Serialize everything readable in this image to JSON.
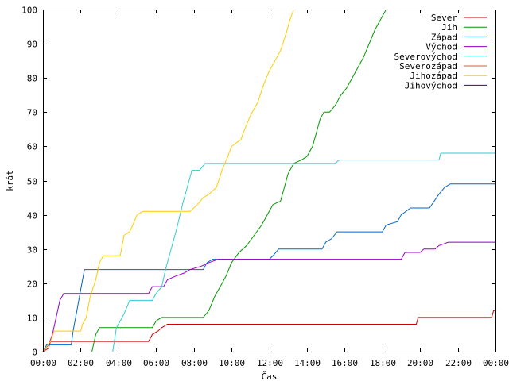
{
  "chart_data": {
    "type": "line",
    "title": "",
    "xlabel": "Čas",
    "ylabel": "krát",
    "xlim": [
      0,
      24
    ],
    "ylim": [
      0,
      100
    ],
    "grid": false,
    "legend_position": "top-right",
    "x_ticks": [
      {
        "x": 0,
        "label": "00:00"
      },
      {
        "x": 2,
        "label": "02:00"
      },
      {
        "x": 4,
        "label": "04:00"
      },
      {
        "x": 6,
        "label": "06:00"
      },
      {
        "x": 8,
        "label": "08:00"
      },
      {
        "x": 10,
        "label": "10:00"
      },
      {
        "x": 12,
        "label": "12:00"
      },
      {
        "x": 14,
        "label": "14:00"
      },
      {
        "x": 16,
        "label": "16:00"
      },
      {
        "x": 18,
        "label": "18:00"
      },
      {
        "x": 20,
        "label": "20:00"
      },
      {
        "x": 22,
        "label": "22:00"
      },
      {
        "x": 24,
        "label": "00:00"
      }
    ],
    "y_ticks": [
      0,
      10,
      20,
      30,
      40,
      50,
      60,
      70,
      80,
      90,
      100
    ],
    "series": [
      {
        "name": "Sever",
        "color": "#cc0000",
        "points": [
          [
            0,
            0
          ],
          [
            0.3,
            1
          ],
          [
            0.4,
            3
          ],
          [
            1.0,
            3
          ],
          [
            5.6,
            3
          ],
          [
            5.8,
            5
          ],
          [
            6.1,
            6
          ],
          [
            6.3,
            7
          ],
          [
            6.6,
            8
          ],
          [
            8.0,
            8
          ],
          [
            19.8,
            8
          ],
          [
            19.9,
            10
          ],
          [
            23.8,
            10
          ],
          [
            23.9,
            12
          ],
          [
            24,
            12
          ]
        ]
      },
      {
        "name": "Jih",
        "color": "#009900",
        "points": [
          [
            2.6,
            0
          ],
          [
            2.8,
            5
          ],
          [
            3.0,
            7
          ],
          [
            5.8,
            7
          ],
          [
            6.0,
            9
          ],
          [
            6.3,
            10
          ],
          [
            8.5,
            10
          ],
          [
            8.8,
            12
          ],
          [
            9.1,
            16
          ],
          [
            9.4,
            19
          ],
          [
            9.7,
            22
          ],
          [
            10.0,
            26
          ],
          [
            10.4,
            29
          ],
          [
            10.8,
            31
          ],
          [
            11.2,
            34
          ],
          [
            11.6,
            37
          ],
          [
            11.9,
            40
          ],
          [
            12.2,
            43
          ],
          [
            12.6,
            44
          ],
          [
            12.8,
            48
          ],
          [
            13.0,
            52
          ],
          [
            13.3,
            55
          ],
          [
            13.7,
            56
          ],
          [
            14.0,
            57
          ],
          [
            14.3,
            60
          ],
          [
            14.5,
            64
          ],
          [
            14.7,
            68
          ],
          [
            14.9,
            70
          ],
          [
            15.2,
            70
          ],
          [
            15.5,
            72
          ],
          [
            15.8,
            75
          ],
          [
            16.1,
            77
          ],
          [
            16.4,
            80
          ],
          [
            16.7,
            83
          ],
          [
            17.0,
            86
          ],
          [
            17.3,
            90
          ],
          [
            17.6,
            94
          ],
          [
            17.9,
            97
          ],
          [
            18.2,
            100
          ]
        ]
      },
      {
        "name": "Západ",
        "color": "#0066cc",
        "points": [
          [
            0,
            0
          ],
          [
            0.2,
            2
          ],
          [
            1.5,
            2
          ],
          [
            1.6,
            6
          ],
          [
            1.8,
            12
          ],
          [
            2.0,
            18
          ],
          [
            2.2,
            24
          ],
          [
            8.5,
            24
          ],
          [
            8.7,
            26
          ],
          [
            9.0,
            27
          ],
          [
            12.0,
            27
          ],
          [
            12.2,
            28
          ],
          [
            12.5,
            30
          ],
          [
            14.8,
            30
          ],
          [
            15.0,
            32
          ],
          [
            15.3,
            33
          ],
          [
            15.6,
            35
          ],
          [
            18.0,
            35
          ],
          [
            18.2,
            37
          ],
          [
            18.8,
            38
          ],
          [
            19.0,
            40
          ],
          [
            19.5,
            42
          ],
          [
            20.5,
            42
          ],
          [
            21.0,
            46
          ],
          [
            21.3,
            48
          ],
          [
            21.6,
            49
          ],
          [
            24,
            49
          ]
        ]
      },
      {
        "name": "Východ",
        "color": "#9900cc",
        "points": [
          [
            0,
            0
          ],
          [
            0.3,
            2
          ],
          [
            0.5,
            5
          ],
          [
            0.7,
            10
          ],
          [
            0.9,
            15
          ],
          [
            1.1,
            17
          ],
          [
            5.6,
            17
          ],
          [
            5.8,
            19
          ],
          [
            6.4,
            19
          ],
          [
            6.6,
            21
          ],
          [
            7.0,
            22
          ],
          [
            7.5,
            23
          ],
          [
            7.8,
            24
          ],
          [
            8.4,
            25
          ],
          [
            8.8,
            26
          ],
          [
            9.3,
            27
          ],
          [
            19.0,
            27
          ],
          [
            19.2,
            29
          ],
          [
            20.0,
            29
          ],
          [
            20.2,
            30
          ],
          [
            20.8,
            30
          ],
          [
            21.0,
            31
          ],
          [
            21.5,
            32
          ],
          [
            24,
            32
          ]
        ]
      },
      {
        "name": "Severovýchod",
        "color": "#33cccc",
        "points": [
          [
            3.7,
            0
          ],
          [
            3.9,
            7
          ],
          [
            4.3,
            11
          ],
          [
            4.6,
            15
          ],
          [
            5.8,
            15
          ],
          [
            6.0,
            17
          ],
          [
            6.3,
            19
          ],
          [
            6.5,
            24
          ],
          [
            6.8,
            30
          ],
          [
            7.1,
            36
          ],
          [
            7.4,
            43
          ],
          [
            7.7,
            49
          ],
          [
            7.9,
            53
          ],
          [
            8.3,
            53
          ],
          [
            8.6,
            55
          ],
          [
            15.5,
            55
          ],
          [
            15.7,
            56
          ],
          [
            21.0,
            56
          ],
          [
            21.1,
            58
          ],
          [
            24,
            58
          ]
        ]
      },
      {
        "name": "Severozápad",
        "color": "#cc6633",
        "points": []
      },
      {
        "name": "Jihozápad",
        "color": "#ffcc00",
        "points": [
          [
            0,
            0
          ],
          [
            0.4,
            3
          ],
          [
            0.6,
            6
          ],
          [
            2.0,
            6
          ],
          [
            2.1,
            8
          ],
          [
            2.3,
            10
          ],
          [
            2.5,
            16
          ],
          [
            2.8,
            21
          ],
          [
            3.0,
            26
          ],
          [
            3.2,
            28
          ],
          [
            4.1,
            28
          ],
          [
            4.3,
            34
          ],
          [
            4.6,
            35
          ],
          [
            5.0,
            40
          ],
          [
            5.3,
            41
          ],
          [
            7.5,
            41
          ],
          [
            7.8,
            41
          ],
          [
            8.2,
            43
          ],
          [
            8.5,
            45
          ],
          [
            8.8,
            46
          ],
          [
            9.2,
            48
          ],
          [
            9.5,
            53
          ],
          [
            9.8,
            57
          ],
          [
            10.0,
            60
          ],
          [
            10.5,
            62
          ],
          [
            10.7,
            65
          ],
          [
            11.0,
            69
          ],
          [
            11.4,
            73
          ],
          [
            11.7,
            78
          ],
          [
            12.0,
            82
          ],
          [
            12.3,
            85
          ],
          [
            12.6,
            88
          ],
          [
            12.9,
            93
          ],
          [
            13.1,
            97
          ],
          [
            13.3,
            100
          ]
        ]
      },
      {
        "name": "Jihovýchod",
        "color": "#330099",
        "points": []
      }
    ]
  }
}
